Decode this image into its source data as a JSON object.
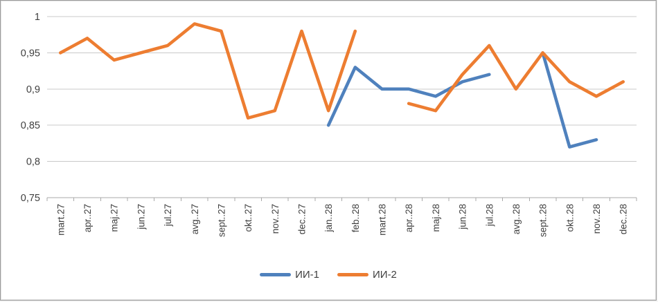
{
  "window": {
    "background_color": "#ffffff",
    "frame_border_color": "#9b9b9b"
  },
  "chart_data": {
    "type": "line",
    "title": "",
    "xlabel": "",
    "ylabel": "",
    "categories": [
      "mart.27",
      "apr..27",
      "maj.27",
      "jun.27",
      "jul.27",
      "avg..27",
      "sept..27",
      "okt..27",
      "nov..27",
      "dec..27",
      "jan..28",
      "feb..28",
      "mart.28",
      "apr..28",
      "maj.28",
      "jun.28",
      "jul.28",
      "avg..28",
      "sept..28",
      "okt..28",
      "nov..28",
      "dec..28"
    ],
    "series": [
      {
        "name": "ИИ-1",
        "color": "#4F81BD",
        "values": [
          null,
          null,
          null,
          null,
          null,
          null,
          null,
          null,
          null,
          null,
          0.85,
          0.93,
          0.9,
          0.9,
          0.89,
          0.91,
          0.92,
          null,
          0.95,
          0.82,
          0.83,
          null
        ]
      },
      {
        "name": "ИИ-2",
        "color": "#ED7D31",
        "values": [
          0.95,
          0.97,
          0.94,
          0.95,
          0.96,
          0.99,
          0.98,
          0.86,
          0.87,
          0.98,
          0.87,
          0.98,
          null,
          0.88,
          0.87,
          0.92,
          0.96,
          0.9,
          0.95,
          0.91,
          0.89,
          0.91
        ]
      }
    ],
    "ylim": [
      0.75,
      1.0
    ],
    "yticks": [
      {
        "value": 1.0,
        "label": "1"
      },
      {
        "value": 0.95,
        "label": "0,95"
      },
      {
        "value": 0.9,
        "label": "0,9"
      },
      {
        "value": 0.85,
        "label": "0,85"
      },
      {
        "value": 0.8,
        "label": "0,8"
      },
      {
        "value": 0.75,
        "label": "0,75"
      }
    ],
    "grid": true,
    "legend_position": "bottom",
    "x_label_rotation": -90,
    "axis_text_color": "#3f3f3f",
    "gridline_color": "#c9c9c9",
    "axis_line_color": "#a9a9a9"
  }
}
